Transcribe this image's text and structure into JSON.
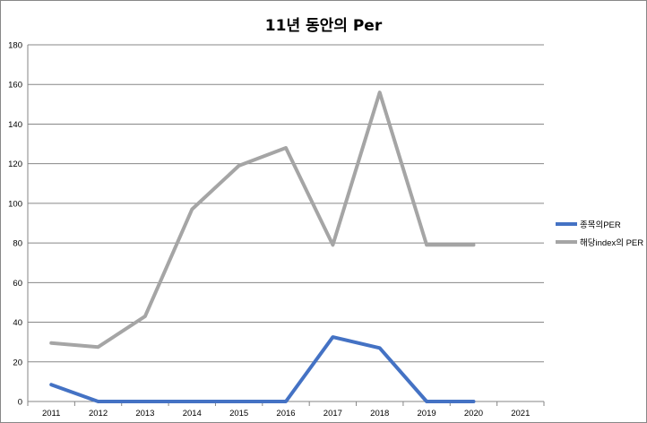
{
  "chart_data": {
    "type": "line",
    "title": "11년 동안의 Per",
    "categories": [
      "2011",
      "2012",
      "2013",
      "2014",
      "2015",
      "2016",
      "2017",
      "2018",
      "2019",
      "2020",
      "2021"
    ],
    "ylim": [
      0,
      180
    ],
    "yticks": [
      0,
      20,
      40,
      60,
      80,
      100,
      120,
      140,
      160,
      180
    ],
    "grid": true,
    "legend_position": "right",
    "series": [
      {
        "name": "종목의PER",
        "color": "#4472C4",
        "values": [
          8.5,
          0,
          0,
          0,
          0,
          0,
          32.5,
          27,
          0,
          0,
          null
        ]
      },
      {
        "name": "해당index의 PER",
        "color": "#A5A5A5",
        "values": [
          29.5,
          27.5,
          43,
          97,
          119,
          128,
          79,
          156,
          79,
          79,
          null
        ]
      }
    ]
  }
}
